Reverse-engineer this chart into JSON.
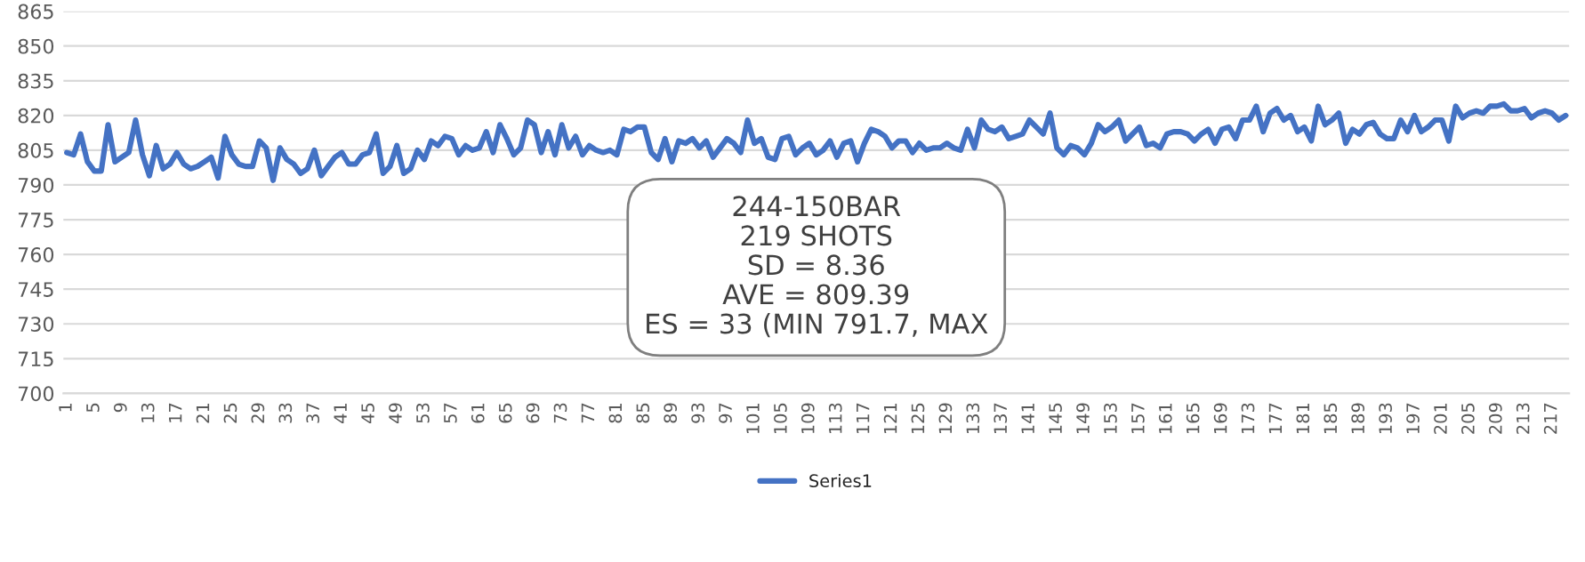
{
  "chart_data": {
    "type": "line",
    "categories": [
      "1",
      null,
      null,
      null,
      "5",
      null,
      null,
      null,
      "9",
      null,
      null,
      null,
      "13",
      null,
      null,
      null,
      "17",
      null,
      null,
      null,
      "21",
      null,
      null,
      null,
      "25",
      null,
      null,
      null,
      "29",
      null,
      null,
      null,
      "33",
      null,
      null,
      null,
      "37",
      null,
      null,
      null,
      "41",
      null,
      null,
      null,
      "45",
      null,
      null,
      null,
      "49",
      null,
      null,
      null,
      "53",
      null,
      null,
      null,
      "57",
      null,
      null,
      null,
      "61",
      null,
      null,
      null,
      "65",
      null,
      null,
      null,
      "69",
      null,
      null,
      null,
      "73",
      null,
      null,
      null,
      "77",
      null,
      null,
      null,
      "81",
      null,
      null,
      null,
      "85",
      null,
      null,
      null,
      "89",
      null,
      null,
      null,
      "93",
      null,
      null,
      null,
      "97",
      null,
      null,
      null,
      "101",
      null,
      null,
      null,
      "105",
      null,
      null,
      null,
      "109",
      null,
      null,
      null,
      "113",
      null,
      null,
      null,
      "117",
      null,
      null,
      null,
      "121",
      null,
      null,
      null,
      "125",
      null,
      null,
      null,
      "129",
      null,
      null,
      null,
      "133",
      null,
      null,
      null,
      "137",
      null,
      null,
      null,
      "141",
      null,
      null,
      null,
      "145",
      null,
      null,
      null,
      "149",
      null,
      null,
      null,
      "153",
      null,
      null,
      null,
      "157",
      null,
      null,
      null,
      "161",
      null,
      null,
      null,
      "165",
      null,
      null,
      null,
      "169",
      null,
      null,
      null,
      "173",
      null,
      null,
      null,
      "177",
      null,
      null,
      null,
      "181",
      null,
      null,
      null,
      "185",
      null,
      null,
      null,
      "189",
      null,
      null,
      null,
      "193",
      null,
      null,
      null,
      "197",
      null,
      null,
      null,
      "201",
      null,
      null,
      null,
      "205",
      null,
      null,
      null,
      "209",
      null,
      null,
      null,
      "213",
      null,
      null,
      null,
      "217",
      null,
      null
    ],
    "series": [
      {
        "name": "Series1",
        "color": "#4472c4",
        "values": [
          804,
          803,
          812,
          800,
          796,
          796,
          816,
          800,
          802,
          804,
          818,
          803,
          794,
          807,
          797,
          799,
          804,
          799,
          797,
          798,
          800,
          802,
          793,
          811,
          803,
          799,
          798,
          798,
          809,
          806,
          792,
          806,
          801,
          799,
          795,
          797,
          805,
          794,
          798,
          802,
          804,
          799,
          799,
          803,
          804,
          812,
          795,
          798,
          807,
          795,
          797,
          805,
          801,
          809,
          807,
          811,
          810,
          803,
          807,
          805,
          806,
          813,
          804,
          816,
          810,
          803,
          806,
          818,
          816,
          804,
          813,
          803,
          816,
          806,
          811,
          803,
          807,
          805,
          804,
          805,
          803,
          814,
          813,
          815,
          815,
          804,
          801,
          810,
          800,
          809,
          808,
          810,
          806,
          809,
          802,
          806,
          810,
          808,
          804,
          818,
          808,
          810,
          802,
          801,
          810,
          811,
          803,
          806,
          808,
          803,
          805,
          809,
          802,
          808,
          809,
          800,
          808,
          814,
          813,
          811,
          806,
          809,
          809,
          804,
          808,
          805,
          806,
          806,
          808,
          806,
          805,
          814,
          806,
          818,
          814,
          813,
          815,
          810,
          811,
          812,
          818,
          815,
          812,
          821,
          806,
          803,
          807,
          806,
          803,
          808,
          816,
          813,
          815,
          818,
          809,
          812,
          815,
          807,
          808,
          806,
          812,
          813,
          813,
          812,
          809,
          812,
          814,
          808,
          814,
          815,
          810,
          818,
          818,
          824,
          813,
          821,
          823,
          818,
          820,
          813,
          815,
          809,
          824,
          816,
          818,
          821,
          808,
          814,
          812,
          816,
          817,
          812,
          810,
          810,
          818,
          813,
          820,
          813,
          815,
          818,
          818,
          809,
          824,
          819,
          821,
          822,
          821,
          824,
          824,
          825,
          822,
          822,
          823,
          819,
          821,
          822,
          821,
          818,
          820
        ]
      }
    ],
    "ylim": [
      700,
      865
    ],
    "yticks": [
      700,
      715,
      730,
      745,
      760,
      775,
      790,
      805,
      820,
      835,
      850,
      865
    ],
    "grid": "y",
    "legend": "bottom",
    "line_style": "solid",
    "marker": "none",
    "annotations": [
      "244-150BAR",
      "219 SHOTS",
      "SD = 8.36",
      "AVE = 809.39",
      "ES = 33 (MIN 791.7, MAX"
    ]
  }
}
